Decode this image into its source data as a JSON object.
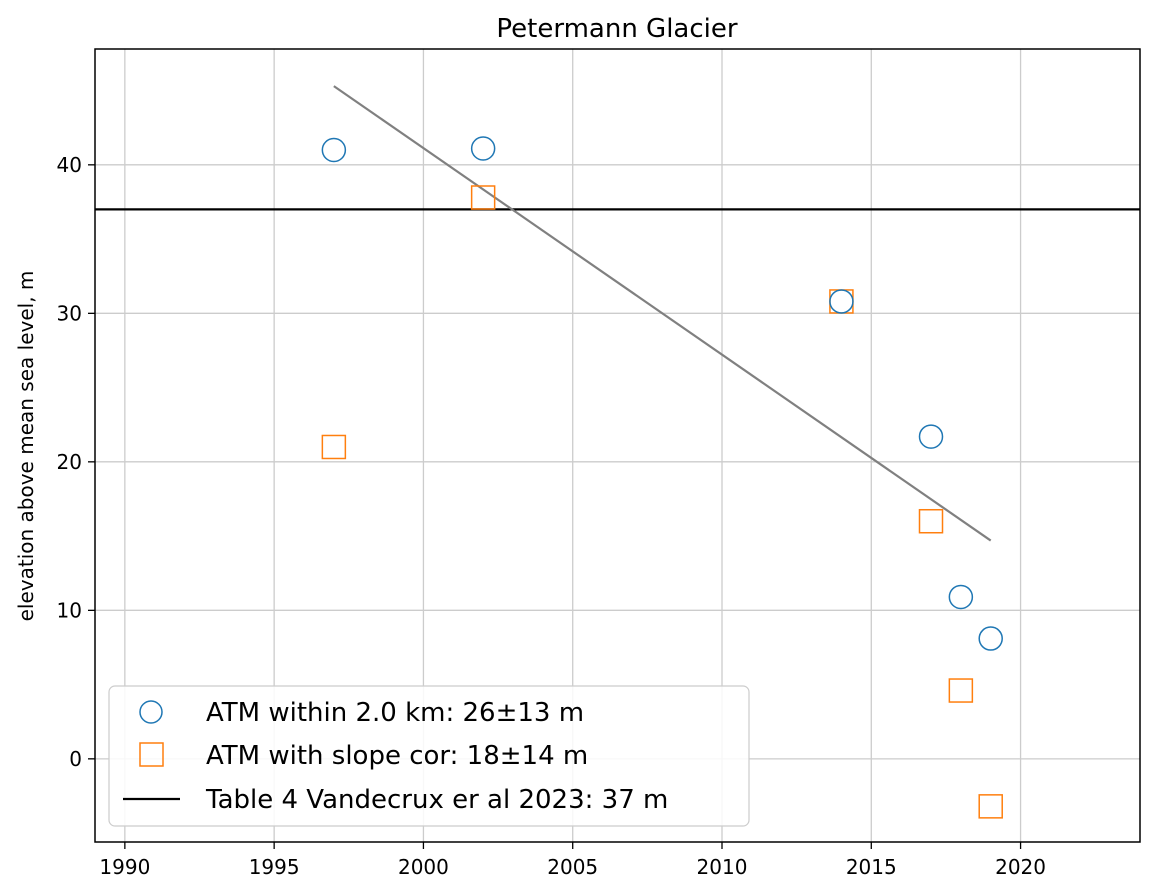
{
  "chart_data": {
    "type": "scatter",
    "title": "Petermann Glacier",
    "xlabel": "",
    "ylabel": "elevation above mean sea level, m",
    "xlim": [
      1989,
      2024
    ],
    "ylim": [
      -5.6,
      47.8
    ],
    "xticks": [
      1990,
      1995,
      2000,
      2005,
      2010,
      2015,
      2020
    ],
    "yticks": [
      0,
      10,
      20,
      30,
      40
    ],
    "grid": true,
    "legend_position": "lower-left",
    "series": [
      {
        "name": "ATM within 2.0 km: 26±13 m",
        "marker": "circle",
        "color": "#1f77b4",
        "x": [
          1997,
          2002,
          2014,
          2017,
          2018,
          2019
        ],
        "y": [
          41.0,
          41.1,
          30.8,
          21.7,
          10.9,
          8.1
        ]
      },
      {
        "name": "ATM with slope cor: 18±14 m",
        "marker": "square",
        "color": "#ff7f0e",
        "x": [
          1997,
          2002,
          2014,
          2017,
          2018,
          2019
        ],
        "y": [
          21.0,
          37.8,
          30.8,
          16.0,
          4.6,
          -3.2
        ]
      }
    ],
    "reference_line": {
      "name": "Table 4 Vandecrux er al 2023: 37 m",
      "y": 37,
      "color": "#000000"
    },
    "trend_line": {
      "color": "#808080",
      "x": [
        1997,
        2019
      ],
      "y": [
        45.3,
        14.7
      ]
    }
  }
}
